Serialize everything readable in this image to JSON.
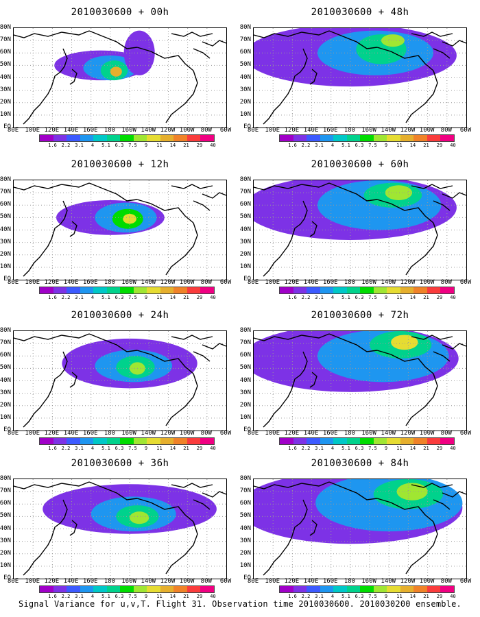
{
  "figure": {
    "caption": "Signal Variance for u,v,T. Flight 31. Observation time 2010030600. 2010030200 ensemble."
  },
  "panels": [
    {
      "id": "p00",
      "title": "2010030600 + 00h",
      "forecast_hour": 0,
      "plume": [
        {
          "cx": 4.5,
          "cy": 5.0,
          "rx": 2.4,
          "ry": 1.2,
          "level": 1
        },
        {
          "cx": 5.0,
          "cy": 4.8,
          "rx": 1.4,
          "ry": 1.0,
          "level": 3
        },
        {
          "cx": 5.2,
          "cy": 4.6,
          "rx": 0.7,
          "ry": 0.8,
          "level": 5
        },
        {
          "cx": 5.3,
          "cy": 4.5,
          "rx": 0.3,
          "ry": 0.4,
          "level": 9
        },
        {
          "cx": 6.5,
          "cy": 6.0,
          "rx": 0.8,
          "ry": 1.8,
          "level": 1
        }
      ]
    },
    {
      "id": "p12",
      "title": "2010030600 + 12h",
      "forecast_hour": 12,
      "plume": [
        {
          "cx": 5.0,
          "cy": 5.0,
          "rx": 2.8,
          "ry": 1.4,
          "level": 1
        },
        {
          "cx": 5.8,
          "cy": 5.0,
          "rx": 1.6,
          "ry": 1.2,
          "level": 3
        },
        {
          "cx": 5.9,
          "cy": 4.9,
          "rx": 0.8,
          "ry": 0.8,
          "level": 6
        },
        {
          "cx": 6.0,
          "cy": 4.9,
          "rx": 0.35,
          "ry": 0.4,
          "level": 8
        }
      ]
    },
    {
      "id": "p24",
      "title": "2010030600 + 24h",
      "forecast_hour": 24,
      "plume": [
        {
          "cx": 6.0,
          "cy": 5.4,
          "rx": 3.5,
          "ry": 2.0,
          "level": 1
        },
        {
          "cx": 6.2,
          "cy": 5.2,
          "rx": 2.0,
          "ry": 1.3,
          "level": 3
        },
        {
          "cx": 6.3,
          "cy": 5.1,
          "rx": 1.0,
          "ry": 0.9,
          "level": 5
        },
        {
          "cx": 6.4,
          "cy": 5.0,
          "rx": 0.4,
          "ry": 0.5,
          "level": 7
        }
      ]
    },
    {
      "id": "p36",
      "title": "2010030600 + 36h",
      "forecast_hour": 36,
      "plume": [
        {
          "cx": 6.0,
          "cy": 5.6,
          "rx": 4.5,
          "ry": 2.0,
          "level": 1
        },
        {
          "cx": 6.2,
          "cy": 5.2,
          "rx": 2.2,
          "ry": 1.4,
          "level": 3
        },
        {
          "cx": 6.4,
          "cy": 5.0,
          "rx": 1.1,
          "ry": 0.9,
          "level": 5
        },
        {
          "cx": 6.5,
          "cy": 4.9,
          "rx": 0.5,
          "ry": 0.5,
          "level": 7
        }
      ]
    },
    {
      "id": "p48",
      "title": "2010030600 + 48h",
      "forecast_hour": 48,
      "plume": [
        {
          "cx": 5.0,
          "cy": 5.8,
          "rx": 5.5,
          "ry": 2.5,
          "level": 1
        },
        {
          "cx": 6.3,
          "cy": 6.0,
          "rx": 3.0,
          "ry": 1.8,
          "level": 3
        },
        {
          "cx": 6.6,
          "cy": 6.3,
          "rx": 1.3,
          "ry": 1.2,
          "level": 5
        },
        {
          "cx": 7.2,
          "cy": 7.0,
          "rx": 0.6,
          "ry": 0.5,
          "level": 7
        }
      ]
    },
    {
      "id": "p60",
      "title": "2010030600 + 60h",
      "forecast_hour": 60,
      "plume": [
        {
          "cx": 5.0,
          "cy": 5.8,
          "rx": 5.5,
          "ry": 2.6,
          "level": 1
        },
        {
          "cx": 6.5,
          "cy": 6.0,
          "rx": 3.2,
          "ry": 2.0,
          "level": 3
        },
        {
          "cx": 7.2,
          "cy": 6.8,
          "rx": 1.5,
          "ry": 1.0,
          "level": 5
        },
        {
          "cx": 7.5,
          "cy": 7.0,
          "rx": 0.7,
          "ry": 0.6,
          "level": 7
        }
      ]
    },
    {
      "id": "p72",
      "title": "2010030600 + 72h",
      "forecast_hour": 72,
      "plume": [
        {
          "cx": 5.0,
          "cy": 5.8,
          "rx": 5.6,
          "ry": 2.7,
          "level": 1
        },
        {
          "cx": 6.7,
          "cy": 6.0,
          "rx": 3.4,
          "ry": 2.1,
          "level": 3
        },
        {
          "cx": 7.6,
          "cy": 6.9,
          "rx": 1.6,
          "ry": 1.1,
          "level": 5
        },
        {
          "cx": 7.8,
          "cy": 7.1,
          "rx": 0.7,
          "ry": 0.6,
          "level": 8
        }
      ]
    },
    {
      "id": "p84",
      "title": "2010030600 + 84h",
      "forecast_hour": 84,
      "plume": [
        {
          "cx": 5.0,
          "cy": 5.7,
          "rx": 5.8,
          "ry": 2.9,
          "level": 1
        },
        {
          "cx": 7.0,
          "cy": 6.1,
          "rx": 3.8,
          "ry": 2.3,
          "level": 3
        },
        {
          "cx": 8.0,
          "cy": 6.8,
          "rx": 1.8,
          "ry": 1.2,
          "level": 5
        },
        {
          "cx": 8.2,
          "cy": 7.0,
          "rx": 0.8,
          "ry": 0.7,
          "level": 7
        }
      ]
    }
  ],
  "map_axes": {
    "lon_labels": [
      "80E",
      "100E",
      "120E",
      "140E",
      "160E",
      "180",
      "160W",
      "140W",
      "120W",
      "100W",
      "80W",
      "60W"
    ],
    "lat_labels": [
      "80N",
      "70N",
      "60N",
      "50N",
      "40N",
      "30N",
      "20N",
      "10N",
      "EQ"
    ]
  },
  "colorbar": {
    "labels": [
      "1.6",
      "2.2",
      "3.1",
      "4",
      "5.1",
      "6.3",
      "7.5",
      "9",
      "11",
      "14",
      "21",
      "29",
      "40"
    ],
    "colors": [
      "#a000c8",
      "#7d32e6",
      "#3c5aff",
      "#1e96f0",
      "#00c8c8",
      "#00d28c",
      "#00dc00",
      "#a0e632",
      "#e6dc32",
      "#e6af2d",
      "#f08228",
      "#fa3c3c",
      "#f00082"
    ]
  }
}
